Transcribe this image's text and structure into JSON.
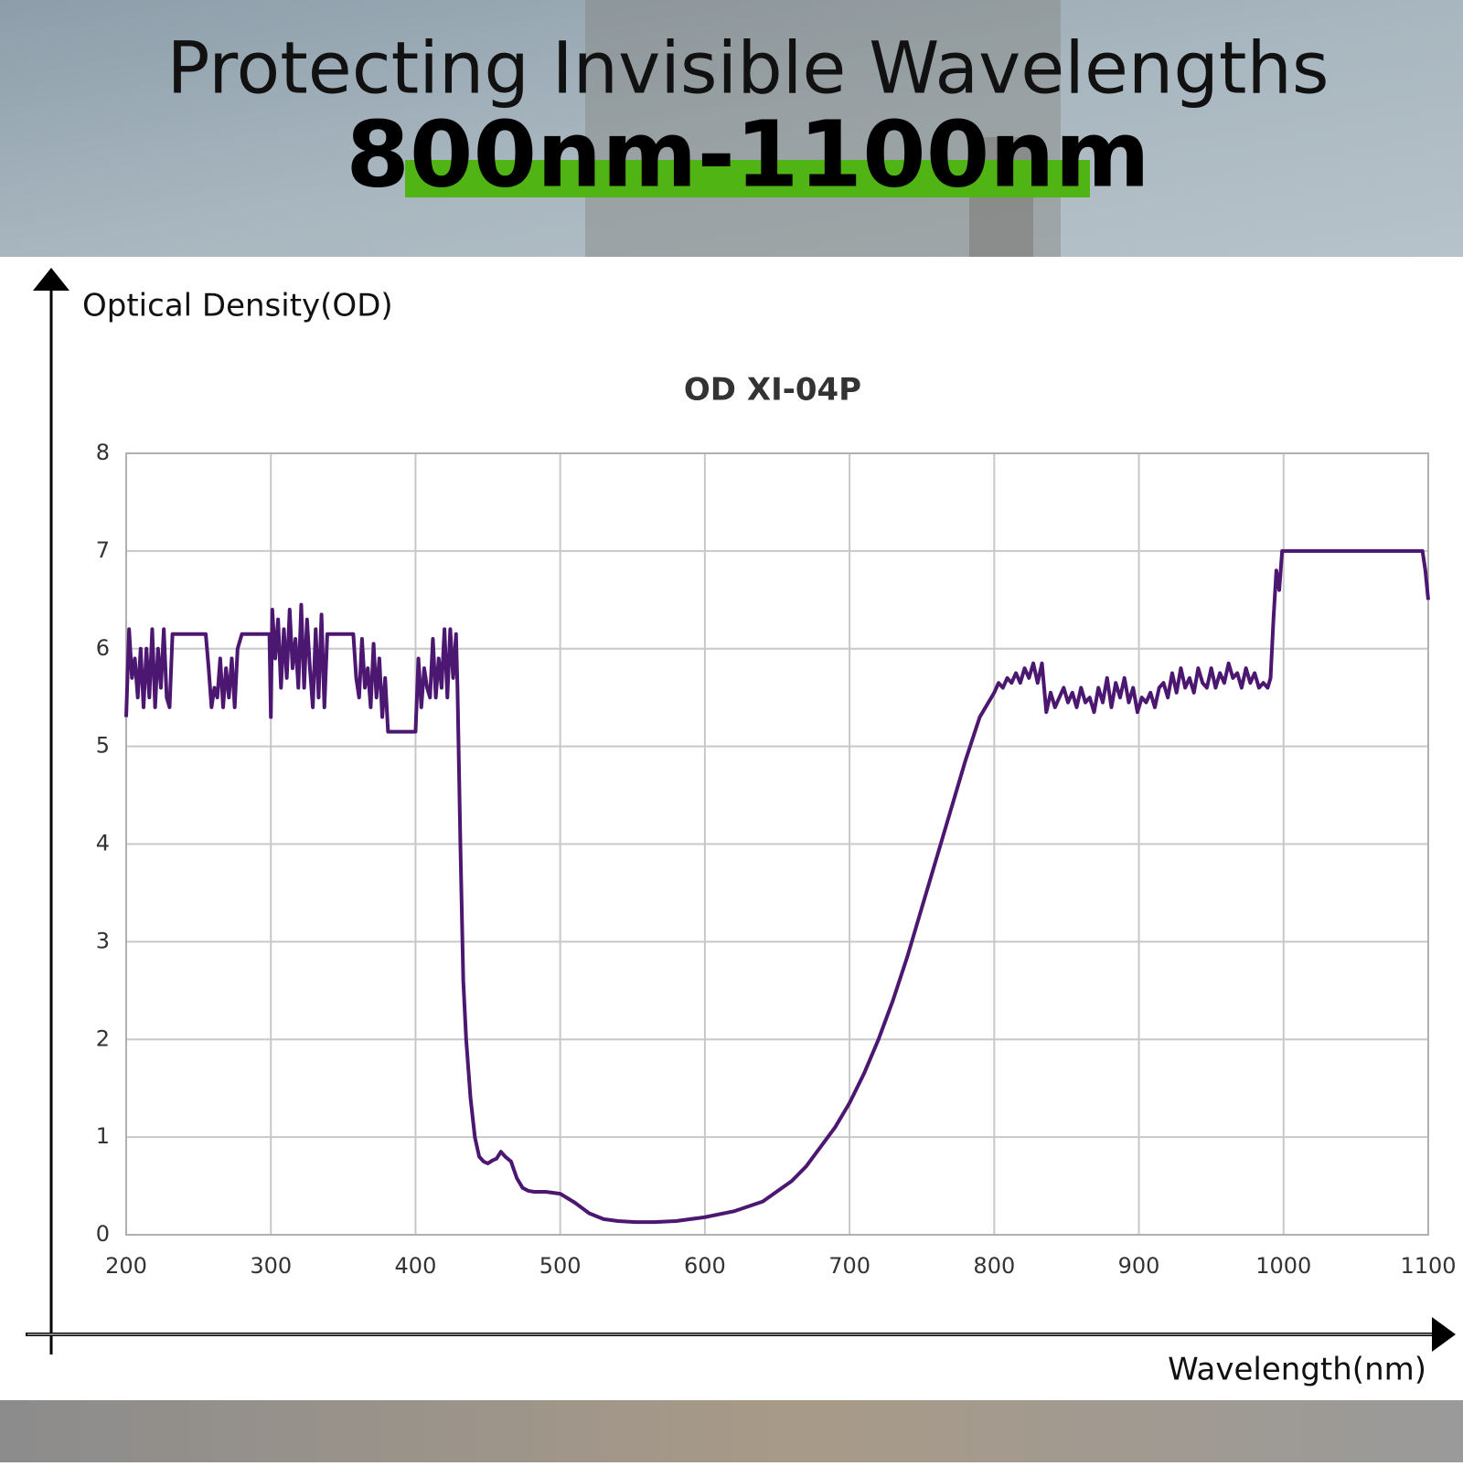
{
  "header": {
    "title": "Protecting Invisible Wavelengths",
    "subtitle": "800nm-1100nm"
  },
  "chart_data": {
    "type": "line",
    "title": "OD XI-04P",
    "y_label": "Optical Density(OD)",
    "x_label": "Wavelength(nm)",
    "xlim": [
      200,
      1100
    ],
    "xticks": [
      200,
      300,
      400,
      500,
      600,
      700,
      800,
      900,
      1000,
      1100
    ],
    "ylim": [
      0,
      8
    ],
    "yticks": [
      0,
      1,
      2,
      3,
      4,
      5,
      6,
      7,
      8
    ],
    "grid": true,
    "x": [
      200,
      202,
      204,
      206,
      208,
      210,
      212,
      214,
      216,
      218,
      220,
      222,
      224,
      226,
      228,
      230,
      232,
      245,
      255,
      257,
      259,
      261,
      263,
      265,
      267,
      269,
      271,
      273,
      275,
      277,
      280,
      299,
      300,
      301,
      303,
      305,
      307,
      309,
      311,
      313,
      315,
      317,
      319,
      321,
      323,
      325,
      327,
      329,
      331,
      333,
      335,
      337,
      339,
      357,
      359,
      361,
      363,
      365,
      367,
      369,
      371,
      373,
      375,
      377,
      379,
      381,
      400,
      402,
      404,
      406,
      408,
      410,
      412,
      414,
      416,
      418,
      420,
      422,
      424,
      426,
      428,
      429,
      431,
      433,
      435,
      438,
      441,
      444,
      447,
      450,
      453,
      456,
      459,
      462,
      466,
      470,
      474,
      478,
      482,
      490,
      500,
      510,
      520,
      530,
      540,
      552,
      565,
      580,
      600,
      620,
      640,
      660,
      670,
      680,
      690,
      700,
      710,
      720,
      730,
      740,
      750,
      760,
      770,
      780,
      790,
      800,
      803,
      806,
      809,
      812,
      815,
      818,
      821,
      824,
      827,
      830,
      833,
      836,
      839,
      842,
      845,
      848,
      851,
      854,
      857,
      860,
      863,
      866,
      869,
      872,
      875,
      878,
      881,
      884,
      887,
      890,
      893,
      896,
      899,
      902,
      905,
      908,
      911,
      914,
      917,
      920,
      923,
      926,
      929,
      932,
      935,
      938,
      941,
      944,
      947,
      950,
      953,
      956,
      959,
      962,
      965,
      968,
      971,
      974,
      977,
      980,
      983,
      986,
      989,
      991,
      993,
      995,
      997,
      999,
      1000,
      1096,
      1098,
      1100
    ],
    "series": [
      {
        "name": "OD XI-04P",
        "color": "#4b1770",
        "values": [
          5.3,
          6.2,
          5.7,
          5.9,
          5.5,
          6.0,
          5.4,
          6.0,
          5.5,
          6.2,
          5.4,
          6.0,
          5.6,
          6.2,
          5.5,
          5.4,
          6.15,
          6.15,
          6.15,
          5.8,
          5.4,
          5.6,
          5.5,
          5.9,
          5.4,
          5.8,
          5.5,
          5.9,
          5.4,
          6.0,
          6.15,
          6.15,
          5.3,
          6.4,
          5.9,
          6.3,
          5.6,
          6.2,
          5.7,
          6.4,
          5.8,
          6.1,
          5.6,
          6.45,
          5.6,
          6.3,
          5.8,
          5.4,
          6.2,
          5.5,
          6.35,
          5.4,
          6.15,
          6.15,
          5.7,
          5.5,
          6.1,
          5.6,
          5.8,
          5.4,
          6.05,
          5.5,
          5.9,
          5.3,
          5.7,
          5.15,
          5.15,
          5.9,
          5.4,
          5.8,
          5.6,
          5.5,
          6.1,
          5.5,
          5.9,
          5.6,
          6.2,
          5.5,
          6.2,
          5.7,
          6.15,
          5.6,
          4.0,
          2.6,
          2.0,
          1.4,
          1.0,
          0.8,
          0.75,
          0.73,
          0.76,
          0.78,
          0.85,
          0.8,
          0.75,
          0.58,
          0.48,
          0.45,
          0.44,
          0.44,
          0.42,
          0.33,
          0.22,
          0.16,
          0.14,
          0.13,
          0.13,
          0.14,
          0.18,
          0.24,
          0.34,
          0.55,
          0.7,
          0.9,
          1.1,
          1.35,
          1.65,
          2.0,
          2.4,
          2.85,
          3.35,
          3.85,
          4.35,
          4.85,
          5.3,
          5.55,
          5.65,
          5.6,
          5.7,
          5.65,
          5.75,
          5.65,
          5.8,
          5.7,
          5.85,
          5.65,
          5.85,
          5.35,
          5.55,
          5.4,
          5.5,
          5.6,
          5.45,
          5.55,
          5.4,
          5.6,
          5.45,
          5.5,
          5.35,
          5.6,
          5.45,
          5.7,
          5.4,
          5.65,
          5.5,
          5.7,
          5.45,
          5.6,
          5.35,
          5.5,
          5.45,
          5.55,
          5.4,
          5.6,
          5.65,
          5.5,
          5.75,
          5.55,
          5.8,
          5.6,
          5.7,
          5.55,
          5.8,
          5.65,
          5.6,
          5.8,
          5.6,
          5.75,
          5.65,
          5.85,
          5.7,
          5.75,
          5.6,
          5.8,
          5.65,
          5.75,
          5.6,
          5.65,
          5.6,
          5.7,
          6.3,
          6.8,
          6.6,
          7.0,
          7.0,
          7.0,
          6.8,
          6.5
        ]
      }
    ]
  }
}
